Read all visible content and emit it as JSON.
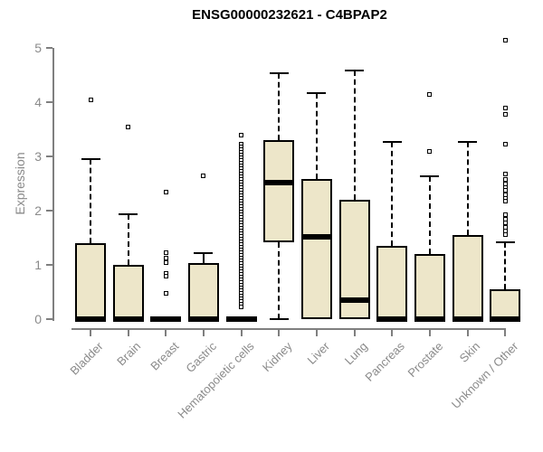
{
  "style": {
    "box_fill": "#EDE6C9",
    "box_border": "#000000",
    "median_color": "#000000",
    "outlier_color": "#000000",
    "axis_color": "#7f7f7f",
    "tick_label_color": "#8a8a8a",
    "title_color": "#000000",
    "background": "#ffffff"
  },
  "chart_data": {
    "type": "boxplot",
    "title": "ENSG00000232621 - C4BPAP2",
    "xlabel": "",
    "ylabel": "Expression",
    "ylim": [
      0,
      5
    ],
    "yticks": [
      0,
      1,
      2,
      3,
      4,
      5
    ],
    "grid": "off",
    "legend": "none",
    "categories": [
      "Bladder",
      "Brain",
      "Breast",
      "Gastric",
      "Hematopoietic cells",
      "Kidney",
      "Liver",
      "Lung",
      "Pancreas",
      "Prostate",
      "Skin",
      "Unknown / Other"
    ],
    "boxes": [
      {
        "category": "Bladder",
        "q1": 0,
        "median": 0,
        "q3": 1.4,
        "whisker_low": 0,
        "whisker_high": 2.95,
        "outliers": [
          4.05
        ]
      },
      {
        "category": "Brain",
        "q1": 0,
        "median": 0,
        "q3": 1.0,
        "whisker_low": 0,
        "whisker_high": 1.93,
        "outliers": [
          3.55
        ]
      },
      {
        "category": "Breast",
        "q1": 0,
        "median": 0,
        "q3": 0.04,
        "whisker_low": 0,
        "whisker_high": 0.04,
        "outliers": [
          2.35,
          1.22,
          1.13,
          1.05,
          0.85,
          0.8,
          0.47
        ]
      },
      {
        "category": "Gastric",
        "q1": 0,
        "median": 0,
        "q3": 1.03,
        "whisker_low": 0,
        "whisker_high": 1.22,
        "outliers": [
          2.65
        ]
      },
      {
        "category": "Hematopoietic cells",
        "q1": 0,
        "median": 0,
        "q3": 0.04,
        "whisker_low": 0,
        "whisker_high": 0.04,
        "outliers": [
          3.4,
          3.22,
          3.17,
          3.12,
          3.07,
          3.02,
          2.97,
          2.92,
          2.87,
          2.82,
          2.77,
          2.72,
          2.67,
          2.62,
          2.57,
          2.52,
          2.47,
          2.42,
          2.37,
          2.32,
          2.27,
          2.22,
          2.17,
          2.12,
          2.07,
          2.02,
          1.97,
          1.92,
          1.87,
          1.82,
          1.77,
          1.72,
          1.67,
          1.62,
          1.57,
          1.52,
          1.47,
          1.42,
          1.37,
          1.32,
          1.27,
          1.22,
          1.17,
          1.12,
          1.07,
          1.02,
          0.97,
          0.92,
          0.87,
          0.82,
          0.77,
          0.72,
          0.67,
          0.62,
          0.57,
          0.52,
          0.47,
          0.42,
          0.37,
          0.32,
          0.27,
          0.22
        ]
      },
      {
        "category": "Kidney",
        "q1": 1.42,
        "median": 2.52,
        "q3": 3.3,
        "whisker_low": 0,
        "whisker_high": 4.53,
        "outliers": []
      },
      {
        "category": "Liver",
        "q1": 0,
        "median": 1.52,
        "q3": 2.58,
        "whisker_low": 0,
        "whisker_high": 4.17,
        "outliers": []
      },
      {
        "category": "Lung",
        "q1": 0,
        "median": 0.35,
        "q3": 2.2,
        "whisker_low": 0,
        "whisker_high": 4.58,
        "outliers": []
      },
      {
        "category": "Pancreas",
        "q1": 0,
        "median": 0,
        "q3": 1.35,
        "whisker_low": 0,
        "whisker_high": 3.27,
        "outliers": []
      },
      {
        "category": "Prostate",
        "q1": 0,
        "median": 0,
        "q3": 1.2,
        "whisker_low": 0,
        "whisker_high": 2.63,
        "outliers": [
          4.15,
          3.1
        ]
      },
      {
        "category": "Skin",
        "q1": 0,
        "median": 0,
        "q3": 1.55,
        "whisker_low": 0,
        "whisker_high": 3.27,
        "outliers": []
      },
      {
        "category": "Unknown / Other",
        "q1": 0,
        "median": 0,
        "q3": 0.55,
        "whisker_low": 0,
        "whisker_high": 1.42,
        "outliers": [
          5.15,
          3.9,
          3.78,
          3.22,
          2.67,
          2.57,
          2.5,
          2.43,
          2.37,
          2.3,
          2.23,
          2.17,
          1.93,
          1.85,
          1.78,
          1.7,
          1.63,
          1.56
        ]
      }
    ]
  }
}
